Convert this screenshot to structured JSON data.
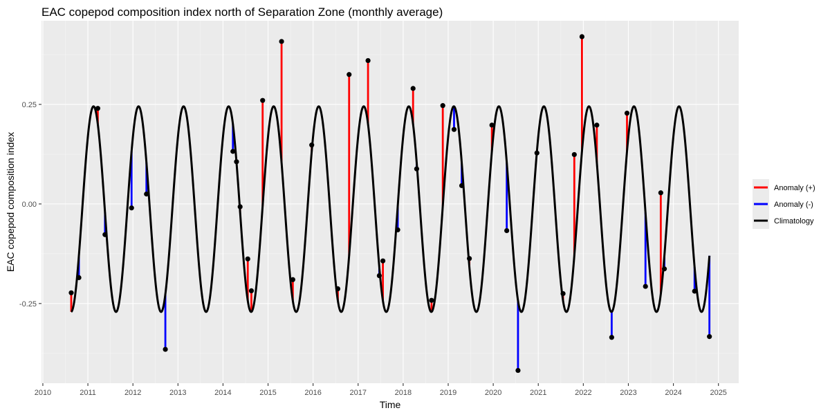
{
  "chart_data": {
    "type": "line",
    "title": "EAC copepod composition index north of Separation Zone (monthly average)",
    "xlabel": "Time",
    "ylabel": "EAC copepod composition index",
    "xlim": [
      2009.97,
      2025.45
    ],
    "ylim": [
      -0.45,
      0.46
    ],
    "x_ticks": [
      2010,
      2011,
      2012,
      2013,
      2014,
      2015,
      2016,
      2017,
      2018,
      2019,
      2020,
      2021,
      2022,
      2023,
      2024,
      2025
    ],
    "y_ticks": [
      {
        "value": -0.25,
        "label": "-0.25"
      },
      {
        "value": 0.0,
        "label": "0.00"
      },
      {
        "value": 0.25,
        "label": "0.25"
      }
    ],
    "grid": true,
    "legend_position": "right",
    "legend": [
      {
        "label": "Anomaly (+)",
        "color": "#ff0000"
      },
      {
        "label": "Anomaly (-)",
        "color": "#0000ff"
      },
      {
        "label": "Climatology",
        "color": "#000000"
      }
    ],
    "climatology": {
      "x_start": 2010.63,
      "x_end": 2024.8,
      "mean": -0.013,
      "amplitude": 0.258,
      "peak_phase": 0.125
    },
    "observations": [
      {
        "x": 2010.63,
        "y": -0.223
      },
      {
        "x": 2010.8,
        "y": -0.185
      },
      {
        "x": 2011.22,
        "y": 0.24
      },
      {
        "x": 2011.38,
        "y": -0.077
      },
      {
        "x": 2011.97,
        "y": -0.01
      },
      {
        "x": 2012.3,
        "y": 0.025
      },
      {
        "x": 2012.72,
        "y": -0.365
      },
      {
        "x": 2014.22,
        "y": 0.132
      },
      {
        "x": 2014.3,
        "y": 0.106
      },
      {
        "x": 2014.38,
        "y": -0.007
      },
      {
        "x": 2014.55,
        "y": -0.138
      },
      {
        "x": 2014.63,
        "y": -0.218
      },
      {
        "x": 2014.88,
        "y": 0.26
      },
      {
        "x": 2015.3,
        "y": 0.408
      },
      {
        "x": 2015.55,
        "y": -0.19
      },
      {
        "x": 2015.97,
        "y": 0.148
      },
      {
        "x": 2016.55,
        "y": -0.213
      },
      {
        "x": 2016.8,
        "y": 0.325
      },
      {
        "x": 2017.22,
        "y": 0.36
      },
      {
        "x": 2017.47,
        "y": -0.18
      },
      {
        "x": 2017.55,
        "y": -0.143
      },
      {
        "x": 2017.88,
        "y": -0.065
      },
      {
        "x": 2018.22,
        "y": 0.29
      },
      {
        "x": 2018.3,
        "y": 0.088
      },
      {
        "x": 2018.63,
        "y": -0.242
      },
      {
        "x": 2018.88,
        "y": 0.247
      },
      {
        "x": 2019.13,
        "y": 0.187
      },
      {
        "x": 2019.3,
        "y": 0.046
      },
      {
        "x": 2019.47,
        "y": -0.137
      },
      {
        "x": 2019.97,
        "y": 0.198
      },
      {
        "x": 2020.3,
        "y": -0.067
      },
      {
        "x": 2020.55,
        "y": -0.418
      },
      {
        "x": 2020.97,
        "y": 0.128
      },
      {
        "x": 2021.55,
        "y": -0.225
      },
      {
        "x": 2021.8,
        "y": 0.124
      },
      {
        "x": 2021.97,
        "y": 0.42
      },
      {
        "x": 2022.3,
        "y": 0.198
      },
      {
        "x": 2022.63,
        "y": -0.335
      },
      {
        "x": 2022.97,
        "y": 0.228
      },
      {
        "x": 2023.38,
        "y": -0.207
      },
      {
        "x": 2023.72,
        "y": 0.028
      },
      {
        "x": 2023.8,
        "y": -0.163
      },
      {
        "x": 2024.47,
        "y": -0.219
      },
      {
        "x": 2024.8,
        "y": -0.333
      }
    ]
  }
}
